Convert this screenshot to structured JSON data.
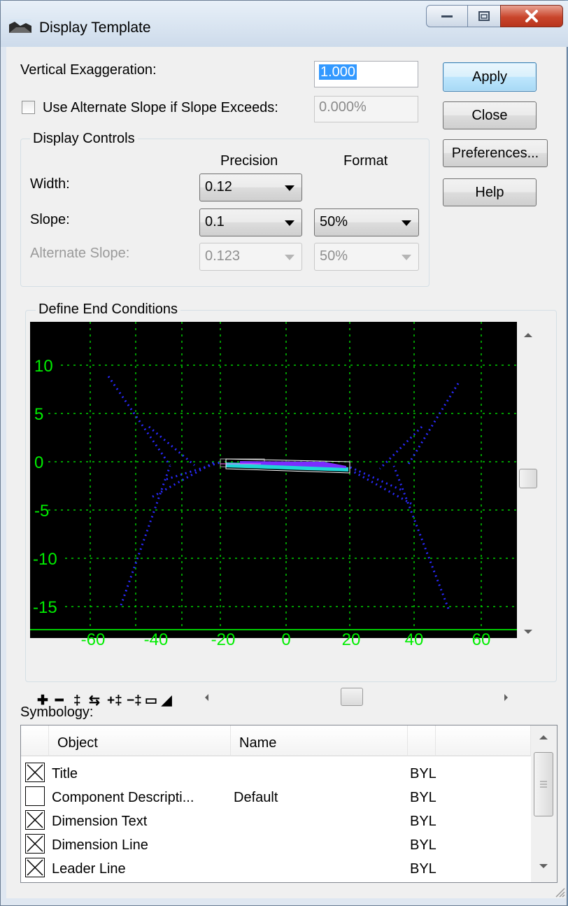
{
  "window": {
    "title": "Display Template"
  },
  "vertical_exaggeration": {
    "label": "Vertical Exaggeration:",
    "value": "1.000"
  },
  "alternate_slope": {
    "label": "Use Alternate Slope if Slope Exceeds:",
    "checked": false,
    "value": "0.000%"
  },
  "buttons": {
    "apply": "Apply",
    "close": "Close",
    "preferences": "Preferences...",
    "help": "Help"
  },
  "display_controls": {
    "title": "Display Controls",
    "precision_header": "Precision",
    "format_header": "Format",
    "width": {
      "label": "Width:",
      "precision": "0.12"
    },
    "slope": {
      "label": "Slope:",
      "precision": "0.1",
      "format": "50%"
    },
    "alternate_slope": {
      "label": "Alternate Slope:",
      "precision": "0.123",
      "format": "50%"
    }
  },
  "end_conditions": {
    "title": "Define End Conditions",
    "y_ticks": [
      "10",
      "5",
      "0",
      "-5",
      "-10",
      "-15"
    ],
    "x_ticks": [
      "-60",
      "-40",
      "-20",
      "0",
      "20",
      "40",
      "60"
    ],
    "grid_color": "#00cc00",
    "background_color": "#000000",
    "toolbar_icons": [
      "zoom-in",
      "zoom-out",
      "zoom-extents-vertical",
      "zoom-extents-horizontal",
      "fit-horizontal",
      "fit-vertical",
      "window-view",
      "terrain-view"
    ]
  },
  "symbology": {
    "label": "Symbology:",
    "columns": [
      "Object",
      "Name",
      "",
      ""
    ],
    "rows": [
      {
        "checked": true,
        "object": "Title",
        "name": "",
        "level": "BYL"
      },
      {
        "checked": false,
        "object": "Component Descripti...",
        "name": "Default",
        "level": "BYL"
      },
      {
        "checked": true,
        "object": "Dimension Text",
        "name": "",
        "level": "BYL"
      },
      {
        "checked": true,
        "object": "Dimension Line",
        "name": "",
        "level": "BYL"
      },
      {
        "checked": true,
        "object": "Leader Line",
        "name": "",
        "level": "BYL"
      }
    ]
  }
}
